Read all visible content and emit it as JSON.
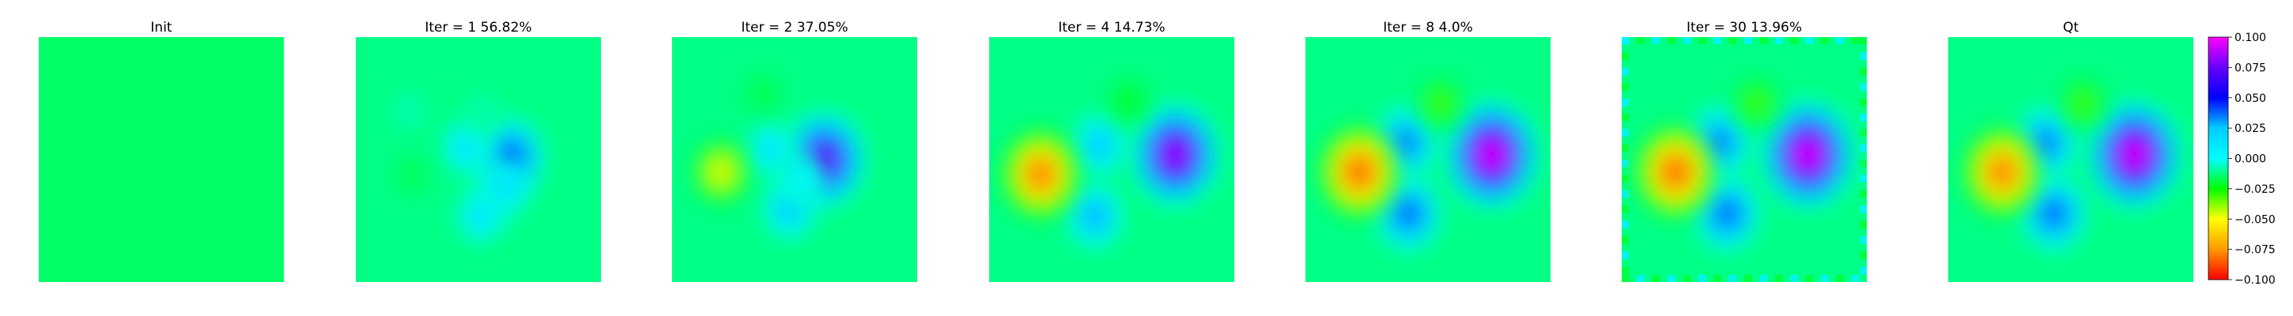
{
  "figure": {
    "panels": [
      {
        "title": "Init"
      },
      {
        "title": "Iter = 1    56.82%"
      },
      {
        "title": "Iter = 2    37.05%"
      },
      {
        "title": "Iter = 4    14.73%"
      },
      {
        "title": "Iter = 8    4.0%"
      },
      {
        "title": "Iter = 30    13.96%"
      },
      {
        "title": "Qt"
      }
    ]
  },
  "chart_data": {
    "type": "heatmap",
    "colormap": "gist_rainbow",
    "color_range": [
      -0.1,
      0.1
    ],
    "colorbar": {
      "ticks": [
        -0.1,
        -0.075,
        -0.05,
        -0.025,
        0.0,
        0.025,
        0.05,
        0.075,
        0.1
      ],
      "tick_labels": [
        "−0.100",
        "−0.075",
        "−0.050",
        "−0.025",
        "0.000",
        "0.025",
        "0.050",
        "0.075",
        "0.100"
      ]
    },
    "colormap_stops": [
      {
        "value": -0.1,
        "color": "#ff0000"
      },
      {
        "value": -0.075,
        "color": "#ff9900"
      },
      {
        "value": -0.05,
        "color": "#ffff00"
      },
      {
        "value": -0.025,
        "color": "#00ff00"
      },
      {
        "value": 0.0,
        "color": "#00ffff"
      },
      {
        "value": 0.025,
        "color": "#00ccff"
      },
      {
        "value": 0.05,
        "color": "#0000ff"
      },
      {
        "value": 0.075,
        "color": "#6600ff"
      },
      {
        "value": 0.1,
        "color": "#ff00ff"
      }
    ],
    "panels": [
      {
        "label": "Init",
        "iteration": 0,
        "error_percent": null,
        "background_value": -0.015,
        "border_artifacts": false,
        "blobs": []
      },
      {
        "label": "Iter = 1",
        "iteration": 1,
        "error_percent": 56.82,
        "background_value": -0.012,
        "border_artifacts": false,
        "blobs": [
          {
            "x": 0.63,
            "y": 0.49,
            "value": 0.055
          },
          {
            "x": 0.6,
            "y": 0.62,
            "value": 0.025
          },
          {
            "x": 0.51,
            "y": 0.73,
            "value": 0.02
          },
          {
            "x": 0.45,
            "y": 0.45,
            "value": 0.02
          },
          {
            "x": 0.52,
            "y": 0.3,
            "value": -0.005
          },
          {
            "x": 0.23,
            "y": 0.56,
            "value": -0.02
          },
          {
            "x": 0.22,
            "y": 0.3,
            "value": -0.004
          }
        ]
      },
      {
        "label": "Iter = 2",
        "iteration": 2,
        "error_percent": 37.05,
        "background_value": -0.012,
        "border_artifacts": false,
        "blobs": [
          {
            "x": 0.62,
            "y": 0.5,
            "value": 0.08
          },
          {
            "x": 0.48,
            "y": 0.7,
            "value": 0.03
          },
          {
            "x": 0.4,
            "y": 0.46,
            "value": 0.02
          },
          {
            "x": 0.53,
            "y": 0.58,
            "value": 0.01
          },
          {
            "x": 0.37,
            "y": 0.23,
            "value": -0.022
          },
          {
            "x": 0.2,
            "y": 0.55,
            "value": -0.055
          }
        ]
      },
      {
        "label": "Iter = 4",
        "iteration": 4,
        "error_percent": 14.73,
        "background_value": -0.012,
        "border_artifacts": false,
        "blobs": [
          {
            "x": 0.76,
            "y": 0.48,
            "value": 0.09
          },
          {
            "x": 0.43,
            "y": 0.73,
            "value": 0.035
          },
          {
            "x": 0.45,
            "y": 0.44,
            "value": 0.03
          },
          {
            "x": 0.57,
            "y": 0.26,
            "value": -0.028
          },
          {
            "x": 0.21,
            "y": 0.56,
            "value": -0.09
          }
        ]
      },
      {
        "label": "Iter = 8",
        "iteration": 8,
        "error_percent": 4.0,
        "background_value": -0.012,
        "border_artifacts": false,
        "blobs": [
          {
            "x": 0.76,
            "y": 0.48,
            "value": 0.1
          },
          {
            "x": 0.42,
            "y": 0.72,
            "value": 0.05
          },
          {
            "x": 0.41,
            "y": 0.43,
            "value": 0.045
          },
          {
            "x": 0.55,
            "y": 0.27,
            "value": -0.035
          },
          {
            "x": 0.22,
            "y": 0.55,
            "value": -0.095
          }
        ]
      },
      {
        "label": "Iter = 30",
        "iteration": 30,
        "error_percent": 13.96,
        "background_value": -0.012,
        "border_artifacts": true,
        "blobs": [
          {
            "x": 0.76,
            "y": 0.48,
            "value": 0.1
          },
          {
            "x": 0.43,
            "y": 0.72,
            "value": 0.05
          },
          {
            "x": 0.4,
            "y": 0.43,
            "value": 0.045
          },
          {
            "x": 0.55,
            "y": 0.27,
            "value": -0.035
          },
          {
            "x": 0.22,
            "y": 0.55,
            "value": -0.095
          }
        ]
      },
      {
        "label": "Qt",
        "iteration": null,
        "error_percent": null,
        "background_value": -0.012,
        "border_artifacts": false,
        "blobs": [
          {
            "x": 0.76,
            "y": 0.48,
            "value": 0.1
          },
          {
            "x": 0.43,
            "y": 0.72,
            "value": 0.05
          },
          {
            "x": 0.4,
            "y": 0.43,
            "value": 0.045
          },
          {
            "x": 0.55,
            "y": 0.27,
            "value": -0.035
          },
          {
            "x": 0.22,
            "y": 0.55,
            "value": -0.09
          }
        ]
      }
    ]
  }
}
